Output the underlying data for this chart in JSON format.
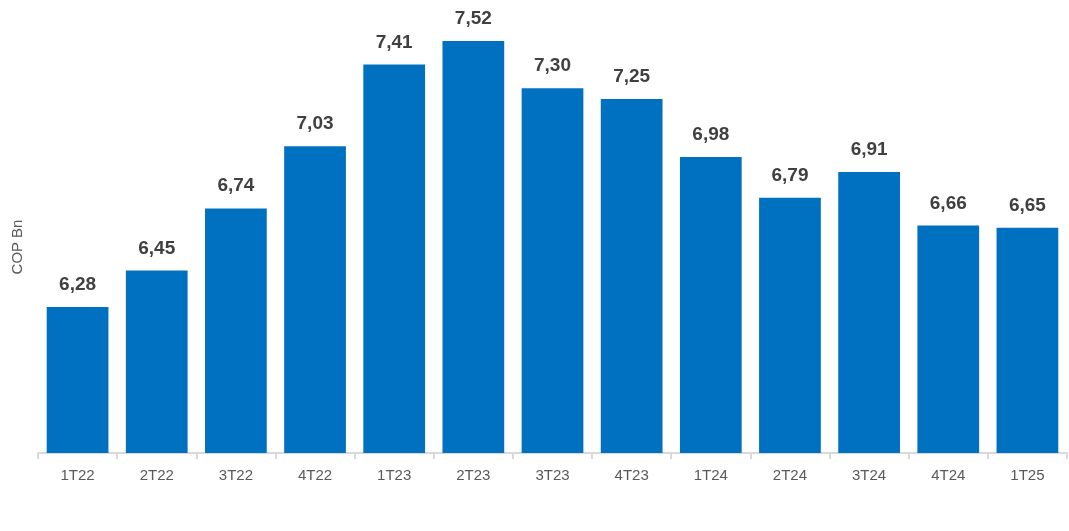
{
  "chart_data": {
    "type": "bar",
    "ylabel": "COP Bn",
    "categories": [
      "1T22",
      "2T22",
      "3T22",
      "4T22",
      "1T23",
      "2T23",
      "3T23",
      "4T23",
      "1T24",
      "2T24",
      "3T24",
      "4T24",
      "1T25"
    ],
    "series": [
      {
        "color": "#0070c0",
        "values": [
          6.28,
          6.45,
          6.74,
          7.03,
          7.41,
          7.52,
          7.3,
          7.25,
          6.98,
          6.79,
          6.91,
          6.66,
          6.65
        ],
        "value_labels": [
          "6,28",
          "6,45",
          "6,74",
          "7,03",
          "7,41",
          "7,52",
          "7,30",
          "7,25",
          "6,98",
          "6,79",
          "6,91",
          "6,66",
          "6,65"
        ]
      }
    ],
    "ylim": [
      5.6,
      7.52
    ],
    "tick_labels": "x",
    "grid": false
  }
}
